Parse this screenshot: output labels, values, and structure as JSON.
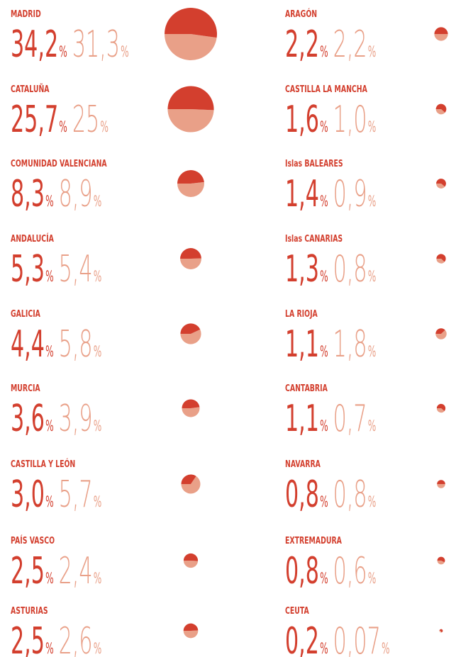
{
  "chart_data": {
    "type": "split-circle",
    "unit": "%",
    "categories": [
      "MADRID",
      "CATALUÑA",
      "COMUNIDAD VALENCIANA",
      "ANDALUCÍA",
      "GALICIA",
      "MURCIA",
      "CASTILLA Y LEÓN",
      "PAÍS VASCO",
      "ASTURIAS",
      "ARAGÓN",
      "CASTILLA LA MANCHA",
      "Islas BALEARES",
      "Islas CANARIAS",
      "LA RIOJA",
      "CANTABRIA",
      "NAVARRA",
      "EXTREMADURA",
      "CEUTA"
    ],
    "series": [
      {
        "color": "#d33f2e",
        "values": [
          34.2,
          25.7,
          8.3,
          5.3,
          4.4,
          3.6,
          3.0,
          2.5,
          2.5,
          2.2,
          1.6,
          1.4,
          1.3,
          1.1,
          1.1,
          0.8,
          0.8,
          0.2
        ],
        "value_labels": [
          "34,2",
          "25,7",
          "8,3",
          "5,3",
          "4,4",
          "3,6",
          "3,0",
          "2,5",
          "2,5",
          "2,2",
          "1,6",
          "1,4",
          "1,3",
          "1,1",
          "1,1",
          "0,8",
          "0,8",
          "0,2"
        ]
      },
      {
        "color": "#e9a088",
        "values": [
          31.3,
          25,
          8.9,
          5.4,
          5.8,
          3.9,
          5.7,
          2.4,
          2.6,
          2.2,
          1.0,
          0.9,
          0.8,
          1.8,
          0.7,
          0.8,
          0.6,
          0.07
        ],
        "value_labels": [
          "31,3",
          "25",
          "8,9",
          "5,4",
          "5,8",
          "3,9",
          "5,7",
          "2,4",
          "2,6",
          "2,2",
          "1,0",
          "0,9",
          "0,8",
          "1,8",
          "0,7",
          "0,8",
          "0,6",
          "0,07"
        ]
      }
    ]
  }
}
